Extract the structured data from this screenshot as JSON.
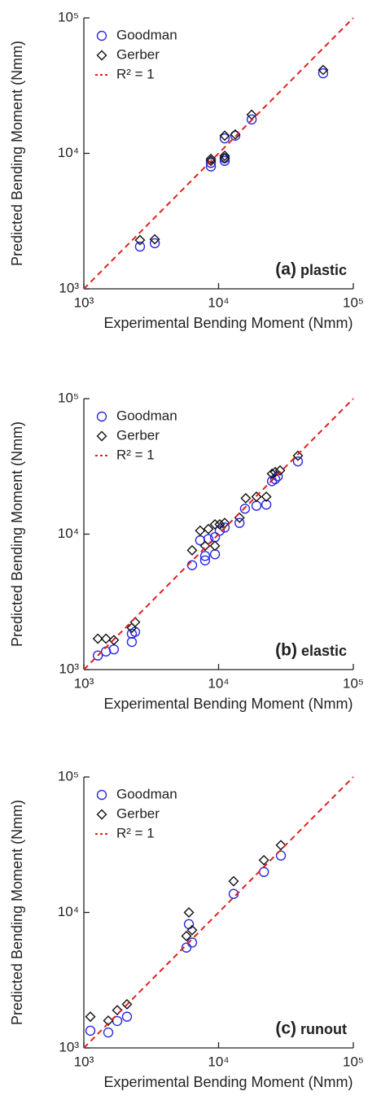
{
  "chart_data": [
    {
      "type": "scatter",
      "xlabel": "Experimental Bending Moment (Nmm)",
      "ylabel": "Predicted Bending Moment (Nmm)",
      "panel_letter": "(a)",
      "panel_text": "plastic",
      "xlog": true,
      "ylog": true,
      "xlim": [
        1000,
        100000
      ],
      "ylim": [
        1000,
        100000
      ],
      "xticks": [
        {
          "value": 1000,
          "label": "10³"
        },
        {
          "value": 10000,
          "label": "10⁴"
        },
        {
          "value": 100000,
          "label": "10⁵"
        }
      ],
      "yticks": [
        {
          "value": 1000,
          "label": "10³"
        },
        {
          "value": 10000,
          "label": "10⁴"
        },
        {
          "value": 100000,
          "label": "10⁵"
        }
      ],
      "series": [
        {
          "name": "Goodman",
          "color": "#2a2ae0",
          "marker": "circle",
          "x": [
            2610,
            3360,
            8770,
            8770,
            11100,
            11100,
            11100,
            13300,
            17600,
            59700
          ],
          "values": [
            2050,
            2170,
            8000,
            8500,
            8800,
            9200,
            12900,
            13500,
            17800,
            39000
          ]
        },
        {
          "name": "Gerber",
          "color": "#111111",
          "marker": "diamond",
          "x": [
            2610,
            3360,
            8770,
            8770,
            11100,
            11100,
            11100,
            13300,
            17600,
            59700
          ],
          "values": [
            2290,
            2320,
            8800,
            9100,
            9200,
            9600,
            13500,
            13800,
            19300,
            41300
          ]
        },
        {
          "name": "R² = 1",
          "color": "#e02020",
          "marker": "dashed",
          "x": [
            1000,
            100000
          ],
          "values": [
            1000,
            100000
          ]
        }
      ]
    },
    {
      "type": "scatter",
      "xlabel": "Experimental Bending Moment (Nmm)",
      "ylabel": "Predicted Bending Moment (Nmm)",
      "panel_letter": "(b)",
      "panel_text": "elastic",
      "xlog": true,
      "ylog": true,
      "xlim": [
        1000,
        100000
      ],
      "ylim": [
        1000,
        100000
      ],
      "xticks": [
        {
          "value": 1000,
          "label": "10³"
        },
        {
          "value": 10000,
          "label": "10⁴"
        },
        {
          "value": 100000,
          "label": "10⁵"
        }
      ],
      "yticks": [
        {
          "value": 1000,
          "label": "10³"
        },
        {
          "value": 10000,
          "label": "10⁴"
        },
        {
          "value": 100000,
          "label": "10⁵"
        }
      ],
      "series": [
        {
          "name": "Goodman",
          "color": "#2a2ae0",
          "marker": "circle",
          "x": [
            1270,
            1460,
            1670,
            2270,
            2270,
            2400,
            6360,
            7300,
            7940,
            7940,
            8400,
            9400,
            9400,
            10200,
            11100,
            14300,
            15700,
            19100,
            22600,
            24900,
            26300,
            27500,
            38800
          ],
          "values": [
            1270,
            1360,
            1410,
            1600,
            1840,
            1900,
            5900,
            9000,
            6400,
            6900,
            9200,
            7100,
            9500,
            10600,
            11200,
            12100,
            15400,
            16200,
            16500,
            24600,
            25500,
            26700,
            34400
          ]
        },
        {
          "name": "Gerber",
          "color": "#111111",
          "marker": "diamond",
          "x": [
            1270,
            1460,
            1670,
            2270,
            2400,
            6360,
            7300,
            7940,
            8400,
            9400,
            9400,
            10200,
            11100,
            14300,
            15900,
            19100,
            22600,
            24900,
            26300,
            28600,
            38800
          ],
          "values": [
            1690,
            1690,
            1650,
            2030,
            2240,
            7600,
            10600,
            8200,
            10900,
            8200,
            11800,
            11800,
            12100,
            13200,
            18400,
            18900,
            18900,
            27900,
            28700,
            29500,
            37900
          ]
        },
        {
          "name": "R² = 1",
          "color": "#e02020",
          "marker": "dashed",
          "x": [
            1000,
            100000
          ],
          "values": [
            1000,
            100000
          ]
        }
      ]
    },
    {
      "type": "scatter",
      "xlabel": "Experimental Bending Moment (Nmm)",
      "ylabel": "Predicted Bending Moment (Nmm)",
      "panel_letter": "(c)",
      "panel_text": "runout",
      "xlog": true,
      "ylog": true,
      "xlim": [
        1000,
        100000
      ],
      "ylim": [
        1000,
        100000
      ],
      "xticks": [
        {
          "value": 1000,
          "label": "10³"
        },
        {
          "value": 10000,
          "label": "10⁴"
        },
        {
          "value": 100000,
          "label": "10⁵"
        }
      ],
      "yticks": [
        {
          "value": 1000,
          "label": "10³"
        },
        {
          "value": 10000,
          "label": "10⁴"
        },
        {
          "value": 100000,
          "label": "10⁵"
        }
      ],
      "series": [
        {
          "name": "Goodman",
          "color": "#2a2ae0",
          "marker": "circle",
          "x": [
            1118,
            1518,
            1770,
            2090,
            5770,
            6020,
            6360,
            12930,
            21700,
            29000
          ],
          "values": [
            1340,
            1300,
            1580,
            1700,
            5500,
            8200,
            6000,
            13700,
            19900,
            26300
          ]
        },
        {
          "name": "Gerber",
          "color": "#111111",
          "marker": "diamond",
          "x": [
            1118,
            1518,
            1770,
            2090,
            5770,
            6020,
            6360,
            12930,
            21700,
            29000
          ],
          "values": [
            1700,
            1590,
            1900,
            2100,
            6700,
            10000,
            7400,
            17000,
            24300,
            31400
          ]
        },
        {
          "name": "R² = 1",
          "color": "#e02020",
          "marker": "dashed",
          "x": [
            1000,
            100000
          ],
          "values": [
            1000,
            100000
          ]
        }
      ]
    }
  ]
}
